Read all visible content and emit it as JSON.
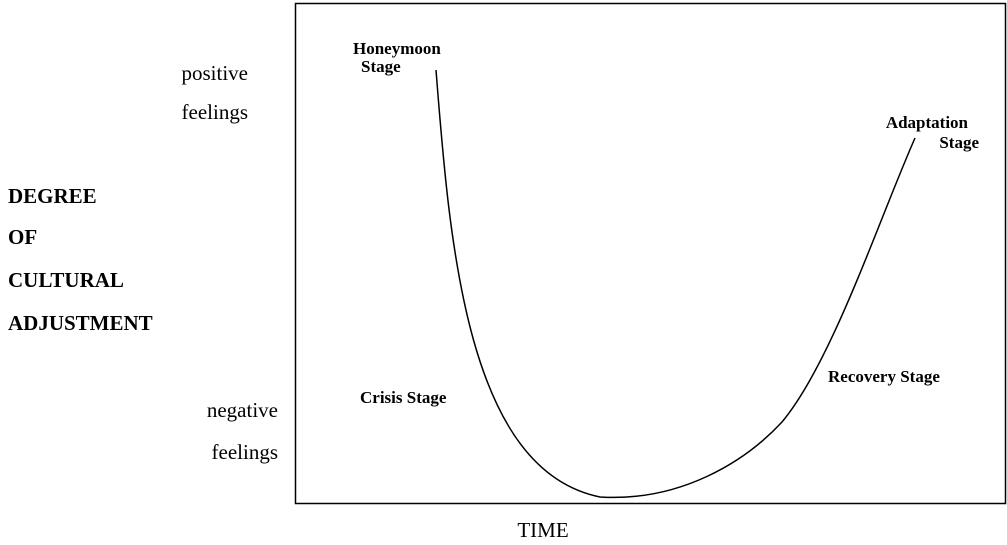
{
  "axis": {
    "y_label": [
      "DEGREE",
      "OF",
      "CULTURAL",
      "ADJUSTMENT"
    ],
    "x_label": "TIME",
    "top": [
      "positive",
      "feelings"
    ],
    "bottom": [
      "negative",
      "feelings"
    ]
  },
  "stages": [
    {
      "lines": [
        "Honeymoon",
        "Stage"
      ]
    },
    {
      "lines": [
        "Adaptation",
        "Stage"
      ]
    },
    {
      "lines": [
        "Recovery Stage"
      ]
    },
    {
      "lines": [
        "Crisis Stage"
      ]
    }
  ]
}
